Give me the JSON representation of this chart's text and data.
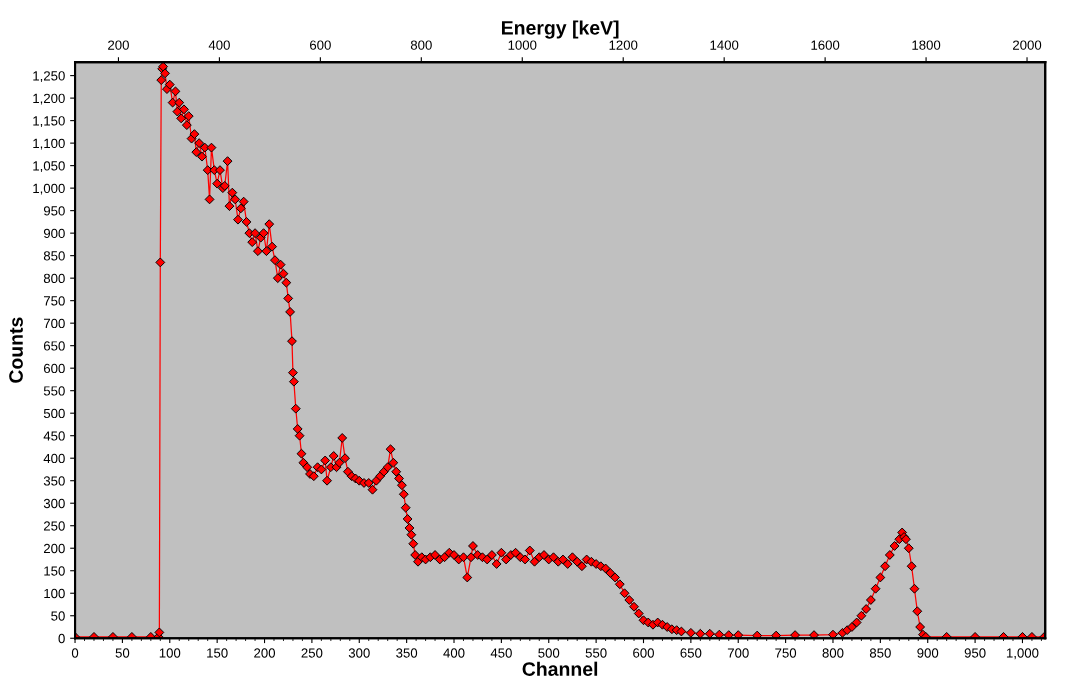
{
  "chart_data": {
    "type": "line",
    "xlabel": "Channel",
    "ylabel": "Counts",
    "x2label": "Energy [keV]",
    "xlim": [
      0,
      1024
    ],
    "xticks": [
      0,
      50,
      100,
      150,
      200,
      250,
      300,
      350,
      400,
      450,
      500,
      550,
      600,
      650,
      700,
      750,
      800,
      850,
      900,
      950,
      {
        "value": 1000,
        "label": "1,000"
      }
    ],
    "x2lim": [
      114,
      2036
    ],
    "x2ticks": [
      200,
      400,
      600,
      800,
      1000,
      1200,
      1400,
      1600,
      1800,
      2000
    ],
    "ylim": [
      0,
      1280
    ],
    "yticks": [
      0,
      50,
      100,
      150,
      200,
      250,
      300,
      350,
      400,
      450,
      500,
      550,
      600,
      650,
      700,
      750,
      800,
      850,
      900,
      950,
      {
        "value": 1000,
        "label": "1,000"
      },
      {
        "value": 1050,
        "label": "1,050"
      },
      {
        "value": 1100,
        "label": "1,100"
      },
      {
        "value": 1150,
        "label": "1,150"
      },
      {
        "value": 1200,
        "label": "1,200"
      },
      {
        "value": 1250,
        "label": "1,250"
      }
    ],
    "grid": false,
    "legend": false,
    "marker": "diamond",
    "line_style": "solid",
    "series": [
      {
        "color": "#ff0000",
        "x": [
          0,
          20,
          40,
          60,
          80,
          88,
          89,
          90,
          91,
          92,
          93,
          95,
          97,
          100,
          103,
          106,
          108,
          110,
          112,
          115,
          118,
          120,
          123,
          126,
          128,
          131,
          134,
          137,
          140,
          142,
          144,
          147,
          150,
          153,
          156,
          158,
          161,
          163,
          166,
          169,
          172,
          175,
          178,
          181,
          184,
          187,
          190,
          193,
          196,
          199,
          202,
          205,
          208,
          211,
          214,
          217,
          220,
          223,
          225,
          227,
          229,
          230,
          231,
          233,
          235,
          237,
          239,
          241,
          245,
          248,
          252,
          256,
          260,
          264,
          266,
          270,
          273,
          276,
          279,
          282,
          285,
          288,
          292,
          296,
          300,
          305,
          310,
          314,
          318,
          322,
          326,
          330,
          333,
          336,
          339,
          342,
          345,
          347,
          349,
          351,
          353,
          355,
          357,
          359,
          362,
          366,
          370,
          375,
          380,
          385,
          390,
          395,
          400,
          405,
          410,
          414,
          418,
          420,
          425,
          430,
          435,
          440,
          445,
          450,
          455,
          460,
          465,
          470,
          475,
          480,
          485,
          490,
          495,
          500,
          505,
          510,
          515,
          520,
          525,
          530,
          535,
          540,
          545,
          550,
          555,
          560,
          565,
          570,
          575,
          580,
          585,
          590,
          595,
          600,
          605,
          610,
          615,
          620,
          625,
          630,
          635,
          640,
          650,
          660,
          670,
          680,
          690,
          700,
          720,
          740,
          760,
          780,
          800,
          810,
          815,
          820,
          825,
          830,
          835,
          840,
          845,
          850,
          855,
          860,
          865,
          870,
          873,
          875,
          877,
          880,
          883,
          886,
          889,
          892,
          895,
          898,
          920,
          950,
          980,
          1000,
          1010,
          1023
        ],
        "values": [
          3,
          3,
          3,
          3,
          3,
          3,
          13,
          835,
          1240,
          1265,
          1270,
          1255,
          1220,
          1230,
          1190,
          1215,
          1170,
          1190,
          1155,
          1175,
          1140,
          1160,
          1110,
          1120,
          1080,
          1100,
          1070,
          1090,
          1040,
          975,
          1090,
          1040,
          1010,
          1040,
          1000,
          1005,
          1060,
          960,
          990,
          975,
          930,
          955,
          970,
          925,
          900,
          880,
          900,
          860,
          890,
          900,
          860,
          920,
          870,
          840,
          800,
          830,
          810,
          790,
          755,
          725,
          660,
          590,
          570,
          510,
          465,
          450,
          410,
          390,
          380,
          365,
          360,
          380,
          375,
          395,
          350,
          380,
          405,
          380,
          390,
          445,
          400,
          370,
          360,
          355,
          350,
          345,
          345,
          330,
          350,
          360,
          370,
          380,
          420,
          390,
          370,
          355,
          340,
          320,
          290,
          265,
          245,
          230,
          210,
          185,
          170,
          180,
          175,
          180,
          185,
          175,
          180,
          190,
          185,
          175,
          180,
          135,
          180,
          205,
          185,
          180,
          175,
          185,
          165,
          190,
          175,
          185,
          190,
          180,
          175,
          195,
          170,
          180,
          185,
          175,
          180,
          170,
          175,
          165,
          180,
          170,
          160,
          175,
          170,
          165,
          160,
          155,
          145,
          135,
          120,
          100,
          85,
          70,
          55,
          40,
          35,
          30,
          35,
          30,
          25,
          20,
          18,
          15,
          12,
          10,
          10,
          8,
          7,
          7,
          6,
          6,
          7,
          7,
          8,
          12,
          18,
          25,
          35,
          50,
          65,
          85,
          110,
          135,
          160,
          185,
          205,
          220,
          235,
          225,
          220,
          200,
          160,
          110,
          60,
          25,
          8,
          3,
          3,
          3,
          3,
          3,
          3,
          3
        ]
      }
    ]
  }
}
